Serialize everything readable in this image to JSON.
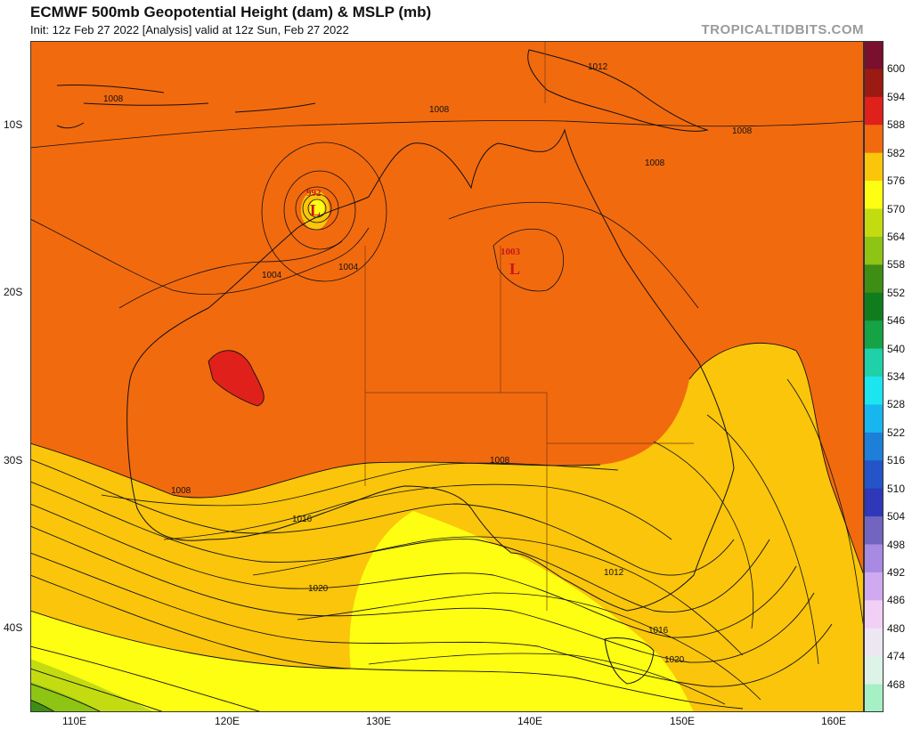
{
  "header": {
    "title": "ECMWF 500mb Geopotential Height (dam) & MSLP (mb)",
    "subtitle": "Init: 12z Feb 27 2022   [Analysis]   valid at 12z Sun, Feb 27 2022",
    "brand": "TROPICALTIDBITS.COM"
  },
  "axes": {
    "lat_labels": [
      "10S",
      "20S",
      "30S",
      "40S"
    ],
    "lon_labels": [
      "110E",
      "120E",
      "130E",
      "140E",
      "150E",
      "160E"
    ]
  },
  "colorbar": {
    "levels": [
      "600",
      "594",
      "588",
      "582",
      "576",
      "570",
      "564",
      "558",
      "552",
      "546",
      "540",
      "534",
      "528",
      "522",
      "516",
      "510",
      "504",
      "498",
      "492",
      "486",
      "480",
      "474",
      "468"
    ],
    "colors": [
      "#7a0f2e",
      "#9b1a12",
      "#e0201a",
      "#f26a0e",
      "#fac50a",
      "#fefe12",
      "#c3dc12",
      "#8ec413",
      "#3e8e14",
      "#0f7d1d",
      "#16a345",
      "#1fd0a8",
      "#1de5ef",
      "#17b6ef",
      "#1d7fd8",
      "#2454c8",
      "#2e38b8",
      "#7265c0",
      "#a98ae2",
      "#cfaaf0",
      "#f2d0f6",
      "#ede7f3",
      "#ddf3e8",
      "#a6f0c6"
    ]
  },
  "map": {
    "isobar_labels": [
      "1008",
      "1008",
      "1008",
      "1012",
      "1008",
      "1004",
      "1004",
      "1008",
      "1008",
      "1016",
      "1012",
      "1020",
      "1016",
      "1020"
    ],
    "lows": [
      {
        "symbol": "L",
        "value": "992"
      },
      {
        "symbol": "L",
        "value": "1003"
      }
    ]
  }
}
